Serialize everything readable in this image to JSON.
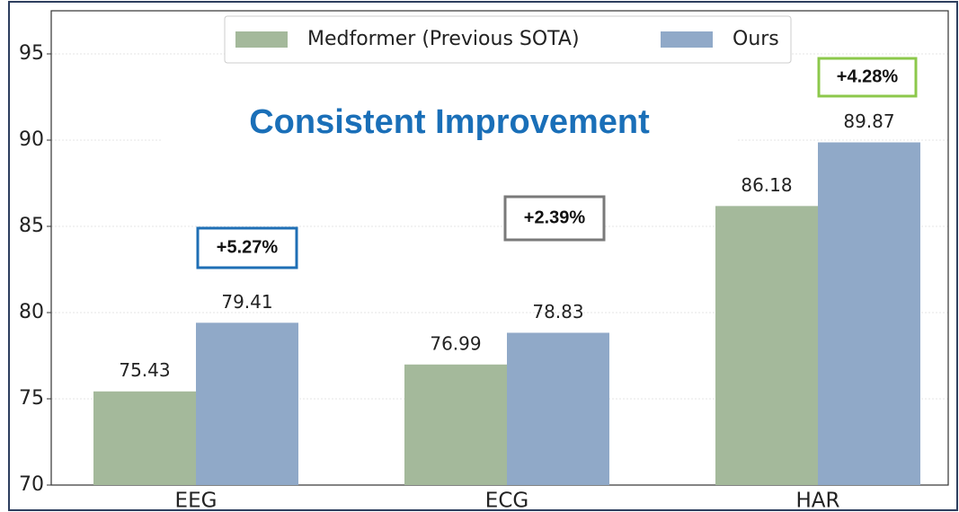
{
  "chart_data": {
    "type": "bar",
    "categories": [
      "EEG",
      "ECG",
      "HAR"
    ],
    "series": [
      {
        "name": "Medformer (Previous SOTA)",
        "color": "#a4b99b",
        "values": [
          75.43,
          76.99,
          86.18
        ]
      },
      {
        "name": "Ours",
        "color": "#90a9c8",
        "values": [
          79.41,
          78.83,
          89.87
        ]
      }
    ],
    "ylim": [
      70,
      97.5
    ],
    "yticks": [
      70,
      75,
      80,
      85,
      90,
      95
    ],
    "grid": true,
    "legend": "top",
    "annotations": [
      {
        "text": "Consistent Improvement",
        "color": "#1a6fb8"
      },
      {
        "text": "+5.27%",
        "color": "#1f6fb5"
      },
      {
        "text": "+2.39%",
        "color": "#7a7a7a"
      },
      {
        "text": "+4.28%",
        "color": "#8cc84b"
      }
    ]
  }
}
